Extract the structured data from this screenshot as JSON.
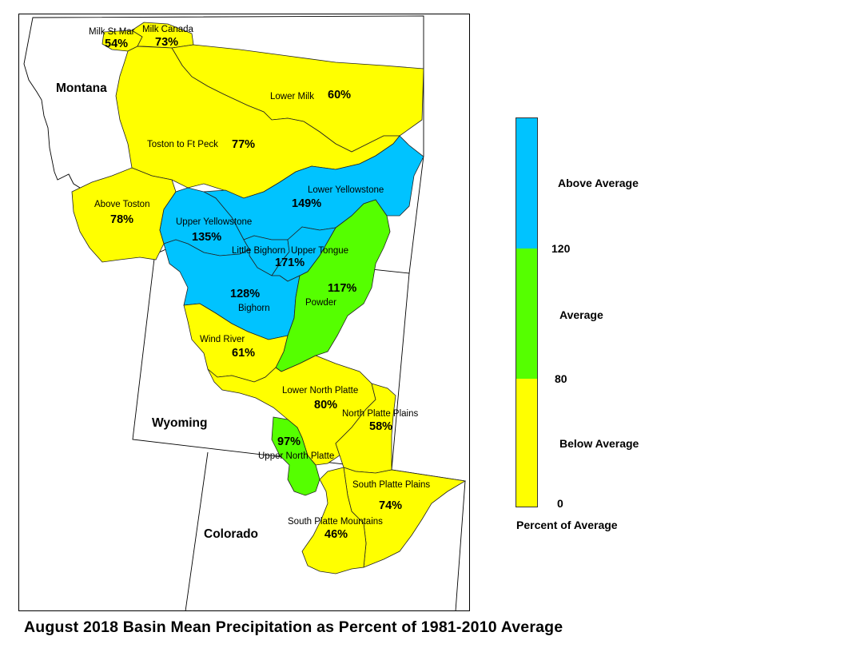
{
  "caption": "August 2018 Basin Mean Precipitation as Percent of 1981-2010 Average",
  "colors": {
    "below": "#ffff00",
    "average": "#55ff00",
    "above": "#00c3ff"
  },
  "states": {
    "montana": "Montana",
    "wyoming": "Wyoming",
    "colorado": "Colorado"
  },
  "basins": [
    {
      "name": "Milk St Mar",
      "percent": "54%",
      "category": "below"
    },
    {
      "name": "Milk Canada",
      "percent": "73%",
      "category": "below"
    },
    {
      "name": "Lower Milk",
      "percent": "60%",
      "category": "below"
    },
    {
      "name": "Toston to Ft Peck",
      "percent": "77%",
      "category": "below"
    },
    {
      "name": "Above Toston",
      "percent": "78%",
      "category": "below"
    },
    {
      "name": "Lower Yellowstone",
      "percent": "149%",
      "category": "above"
    },
    {
      "name": "Upper Yellowstone",
      "percent": "135%",
      "category": "above"
    },
    {
      "name": "Little Bighorn",
      "percent": "",
      "category": "above"
    },
    {
      "name": "Upper Tongue",
      "percent": "171%",
      "category": "above"
    },
    {
      "name": "Bighorn",
      "percent": "128%",
      "category": "above"
    },
    {
      "name": "Powder",
      "percent": "117%",
      "category": "average"
    },
    {
      "name": "Wind River",
      "percent": "61%",
      "category": "below"
    },
    {
      "name": "Lower North Platte",
      "percent": "80%",
      "category": "below"
    },
    {
      "name": "North Platte Plains",
      "percent": "58%",
      "category": "below"
    },
    {
      "name": "Upper North Platte",
      "percent": "97%",
      "category": "average"
    },
    {
      "name": "South Platte Plains",
      "percent": "74%",
      "category": "below"
    },
    {
      "name": "South Platte Mountains",
      "percent": "46%",
      "category": "below"
    }
  ],
  "legend": {
    "categories": [
      {
        "label": "Above Average",
        "color": "#00c3ff",
        "min": 120,
        "max": null
      },
      {
        "label": "Average",
        "color": "#55ff00",
        "min": 80,
        "max": 120
      },
      {
        "label": "Below Average",
        "color": "#ffff00",
        "min": 0,
        "max": 80
      }
    ],
    "ticks": [
      "120",
      "80",
      "0"
    ],
    "title": "Percent of Average"
  }
}
